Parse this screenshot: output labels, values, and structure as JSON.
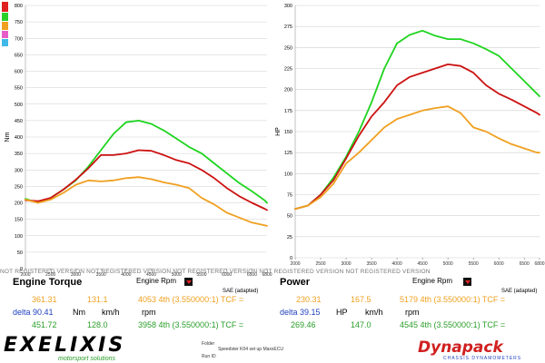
{
  "colors": {
    "green": "#1ed41e",
    "red": "#cc1111",
    "orange": "#f0a020",
    "blue": "#1f3fbf",
    "grid": "#cfcfcf"
  },
  "legend_swatches": [
    "#e0201e",
    "#28d028",
    "#f0a020",
    "#e85cc8",
    "#40b8e8"
  ],
  "watermark": "NOT REGISTERED VERSION NOT REGISTERED VERSION NOT REGISTERED VERSION NOT REGISTERED VERSION NOT REGISTERED VERSION",
  "chart_data": [
    {
      "type": "line",
      "title": "Engine Torque",
      "xlabel": "Engine Rpm",
      "ylabel": "Nm",
      "note": "SAE (adapted)",
      "xlim": [
        2000,
        6800
      ],
      "ylim": [
        0,
        800
      ],
      "x_ticks": [
        "2000",
        "2500",
        "3000",
        "3500",
        "4000",
        "4500",
        "5000",
        "5500",
        "6000",
        "6500",
        "6800"
      ],
      "y_ticks": [
        "0",
        "50",
        "100",
        "150",
        "200",
        "250",
        "300",
        "350",
        "400",
        "450",
        "500",
        "550",
        "600",
        "650",
        "700",
        "750",
        "800"
      ],
      "series": [
        {
          "color": "#1ed41e",
          "x": [
            2000,
            2250,
            2500,
            2750,
            3000,
            3250,
            3500,
            3750,
            4000,
            4250,
            4500,
            4750,
            5000,
            5250,
            5500,
            5750,
            6000,
            6250,
            6500,
            6750,
            6800
          ],
          "y": [
            212,
            200,
            215,
            240,
            268,
            310,
            360,
            410,
            445,
            450,
            440,
            420,
            395,
            370,
            350,
            320,
            290,
            260,
            235,
            208,
            200
          ]
        },
        {
          "color": "#cc1111",
          "x": [
            2000,
            2250,
            2500,
            2750,
            3000,
            3250,
            3500,
            3750,
            4000,
            4250,
            4500,
            4750,
            5000,
            5250,
            5500,
            5750,
            6000,
            6250,
            6500,
            6750,
            6800
          ],
          "y": [
            208,
            205,
            215,
            240,
            270,
            305,
            345,
            345,
            350,
            360,
            358,
            345,
            330,
            320,
            300,
            275,
            245,
            220,
            200,
            182,
            178
          ]
        },
        {
          "color": "#f0a020",
          "x": [
            2000,
            2250,
            2500,
            2750,
            3000,
            3250,
            3500,
            3750,
            4000,
            4250,
            4500,
            4750,
            5000,
            5250,
            5500,
            5750,
            6000,
            6250,
            6500,
            6750,
            6800
          ],
          "y": [
            210,
            200,
            210,
            230,
            255,
            268,
            265,
            268,
            275,
            278,
            272,
            262,
            255,
            245,
            215,
            195,
            170,
            155,
            140,
            132,
            130
          ]
        }
      ],
      "readouts": [
        {
          "v1": "361.31",
          "v2": "131.1",
          "v3": "4053 4th (3.550000:1) TCF =",
          "color": "#f0a020"
        },
        {
          "label": "delta 90.41",
          "u1": "Nm",
          "u2": "km/h",
          "u3": "rpm",
          "color": "#1f3fbf"
        },
        {
          "v1": "451.72",
          "v2": "128.0",
          "v3": "3958 4th (3.550000:1) TCF =",
          "color": "#2a9e2a"
        }
      ]
    },
    {
      "type": "line",
      "title": "Power",
      "xlabel": "Engine Rpm",
      "ylabel": "HP",
      "note": "SAE (adapted)",
      "xlim": [
        2000,
        6800
      ],
      "ylim": [
        0,
        300
      ],
      "x_ticks": [
        "2000",
        "2500",
        "3000",
        "3500",
        "4000",
        "4500",
        "5000",
        "5500",
        "6000",
        "6500",
        "6800"
      ],
      "y_ticks": [
        "0",
        "25",
        "50",
        "75",
        "100",
        "125",
        "150",
        "175",
        "200",
        "225",
        "250",
        "275",
        "300"
      ],
      "series": [
        {
          "color": "#1ed41e",
          "x": [
            2000,
            2250,
            2500,
            2750,
            3000,
            3250,
            3500,
            3750,
            4000,
            4250,
            4500,
            4750,
            5000,
            5250,
            5500,
            5750,
            6000,
            6250,
            6500,
            6750,
            6800
          ],
          "y": [
            58,
            62,
            75,
            95,
            120,
            150,
            185,
            225,
            255,
            265,
            270,
            264,
            260,
            260,
            255,
            248,
            240,
            225,
            210,
            195,
            192
          ]
        },
        {
          "color": "#cc1111",
          "x": [
            2000,
            2250,
            2500,
            2750,
            3000,
            3250,
            3500,
            3750,
            4000,
            4250,
            4500,
            4750,
            5000,
            5250,
            5500,
            5750,
            6000,
            6250,
            6500,
            6750,
            6800
          ],
          "y": [
            58,
            62,
            75,
            92,
            118,
            145,
            168,
            185,
            205,
            215,
            220,
            225,
            230,
            228,
            220,
            205,
            195,
            188,
            180,
            172,
            170
          ]
        },
        {
          "color": "#f0a020",
          "x": [
            2000,
            2250,
            2500,
            2750,
            3000,
            3250,
            3500,
            3750,
            4000,
            4250,
            4500,
            4750,
            5000,
            5250,
            5500,
            5750,
            6000,
            6250,
            6500,
            6750,
            6800
          ],
          "y": [
            58,
            62,
            72,
            88,
            112,
            125,
            140,
            155,
            165,
            170,
            175,
            178,
            180,
            172,
            155,
            150,
            142,
            135,
            130,
            125,
            125
          ]
        }
      ],
      "readouts": [
        {
          "v1": "230.31",
          "v2": "167.5",
          "v3": "5179 4th (3.550000:1) TCF =",
          "color": "#f0a020"
        },
        {
          "label": "delta 39.15",
          "u1": "HP",
          "u2": "km/h",
          "u3": "rpm",
          "color": "#1f3fbf"
        },
        {
          "v1": "269.46",
          "v2": "147.0",
          "v3": "4545 4th (3.550000:1) TCF =",
          "color": "#2a9e2a"
        }
      ]
    }
  ],
  "footer": {
    "logo_text": "EXELIXIS",
    "logo_sub": "motorsport solutions",
    "folder_label": "Folder",
    "folder_value": "Speedster K04 set up MaxxECU",
    "run_label": "Run ID",
    "dynapack_text": "Dynapack",
    "dynapack_sub": "CHASSIS DYNAMOMETERS"
  }
}
